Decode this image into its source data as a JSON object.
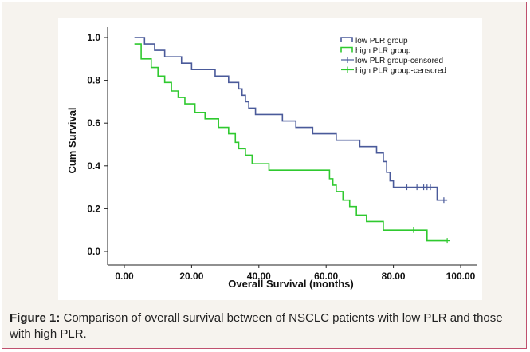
{
  "caption": {
    "label": "Figure 1:",
    "text": " Comparison of overall survival between of NSCLC patients with low PLR and those with high PLR."
  },
  "colors": {
    "frame_border": "#c0506e",
    "background": "#f6f3ee",
    "low_plr": "#4a5a9a",
    "high_plr": "#2fc92f"
  },
  "chart_data": {
    "type": "line",
    "step": true,
    "title": "",
    "xlabel": "Overall Survival (months)",
    "ylabel": "Cum Survival",
    "xlim": [
      0,
      100
    ],
    "ylim": [
      0,
      1
    ],
    "x_ticks": [
      0,
      20,
      40,
      60,
      80,
      100
    ],
    "x_tick_labels": [
      "0.00",
      "20.00",
      "40.00",
      "60.00",
      "80.00",
      "100.00"
    ],
    "y_ticks": [
      0,
      0.2,
      0.4,
      0.6,
      0.8,
      1.0
    ],
    "y_tick_labels": [
      "0.0",
      "0.2",
      "0.4",
      "0.6",
      "0.8",
      "1.0"
    ],
    "legend_position": "top-right",
    "legend": [
      "low PLR group",
      "high PLR group",
      "low PLR group-censored",
      "high PLR group-censored"
    ],
    "series": [
      {
        "name": "low PLR group",
        "color": "#4a5a9a",
        "steps": [
          [
            3,
            1.0
          ],
          [
            6,
            0.97
          ],
          [
            9,
            0.94
          ],
          [
            12,
            0.91
          ],
          [
            17,
            0.88
          ],
          [
            20,
            0.85
          ],
          [
            27,
            0.82
          ],
          [
            31,
            0.79
          ],
          [
            34,
            0.76
          ],
          [
            35,
            0.73
          ],
          [
            36,
            0.7
          ],
          [
            37,
            0.67
          ],
          [
            39,
            0.64
          ],
          [
            47,
            0.61
          ],
          [
            51,
            0.58
          ],
          [
            56,
            0.55
          ],
          [
            63,
            0.52
          ],
          [
            70,
            0.49
          ],
          [
            75,
            0.46
          ],
          [
            77,
            0.42
          ],
          [
            78,
            0.37
          ],
          [
            79,
            0.33
          ],
          [
            80,
            0.3
          ],
          [
            93,
            0.24
          ],
          [
            96,
            0.24
          ]
        ],
        "censored": [
          [
            84,
            0.3
          ],
          [
            87,
            0.3
          ],
          [
            89,
            0.3
          ],
          [
            90,
            0.3
          ],
          [
            91,
            0.3
          ],
          [
            95,
            0.24
          ]
        ]
      },
      {
        "name": "high PLR group",
        "color": "#2fc92f",
        "steps": [
          [
            3,
            0.97
          ],
          [
            5,
            0.9
          ],
          [
            8,
            0.86
          ],
          [
            10,
            0.82
          ],
          [
            12,
            0.79
          ],
          [
            14,
            0.75
          ],
          [
            16,
            0.72
          ],
          [
            18,
            0.69
          ],
          [
            21,
            0.65
          ],
          [
            24,
            0.62
          ],
          [
            28,
            0.58
          ],
          [
            31,
            0.55
          ],
          [
            33,
            0.51
          ],
          [
            34,
            0.48
          ],
          [
            36,
            0.45
          ],
          [
            38,
            0.41
          ],
          [
            43,
            0.38
          ],
          [
            60,
            0.38
          ],
          [
            61,
            0.34
          ],
          [
            62,
            0.31
          ],
          [
            63,
            0.28
          ],
          [
            65,
            0.24
          ],
          [
            67,
            0.21
          ],
          [
            69,
            0.17
          ],
          [
            72,
            0.14
          ],
          [
            77,
            0.1
          ],
          [
            84,
            0.1
          ],
          [
            90,
            0.05
          ],
          [
            96,
            0.05
          ]
        ],
        "censored": [
          [
            86,
            0.1
          ],
          [
            96,
            0.05
          ]
        ]
      }
    ]
  }
}
